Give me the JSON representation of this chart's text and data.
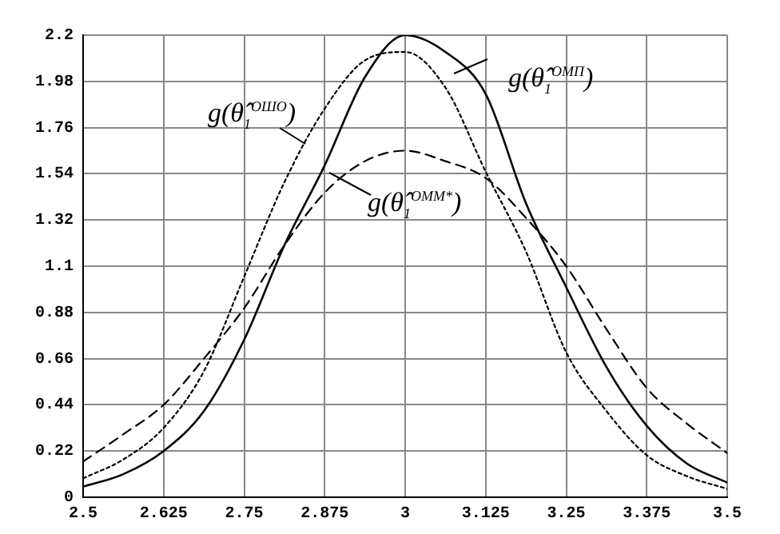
{
  "chart_data": {
    "type": "line",
    "x": [
      2.5,
      2.5625,
      2.625,
      2.6875,
      2.75,
      2.8125,
      2.875,
      2.9375,
      3.0,
      3.0625,
      3.125,
      3.1875,
      3.25,
      3.3125,
      3.375,
      3.4375,
      3.5
    ],
    "series": [
      {
        "name": "g(θ̂$_{1}$$^{ОМП}$)",
        "color": "#000000",
        "line_style": "solid",
        "values": [
          0.05,
          0.11,
          0.22,
          0.41,
          0.75,
          1.2,
          1.58,
          2.0,
          2.2,
          2.12,
          1.92,
          1.4,
          1.0,
          0.62,
          0.34,
          0.16,
          0.07
        ]
      },
      {
        "name": "g(θ̂$_{1}$$^{ОШО}$)",
        "color": "#000000",
        "line_style": "dotted",
        "values": [
          0.09,
          0.18,
          0.33,
          0.6,
          1.05,
          1.5,
          1.85,
          2.08,
          2.12,
          1.95,
          1.55,
          1.17,
          0.69,
          0.41,
          0.2,
          0.1,
          0.04
        ]
      },
      {
        "name": "g(θ̂$_{1}$$^{ОММ*}$)",
        "color": "#000000",
        "line_style": "dashed",
        "values": [
          0.17,
          0.3,
          0.44,
          0.66,
          0.9,
          1.2,
          1.45,
          1.6,
          1.65,
          1.6,
          1.52,
          1.33,
          1.1,
          0.8,
          0.52,
          0.35,
          0.21
        ]
      }
    ],
    "xlim": [
      2.5,
      3.5
    ],
    "xticks": [
      2.5,
      2.625,
      2.75,
      2.875,
      3,
      3.125,
      3.25,
      3.375,
      3.5
    ],
    "ylim": [
      0,
      2.2
    ],
    "yticks": [
      0,
      0.22,
      0.44,
      0.66,
      0.88,
      1.1,
      1.32,
      1.54,
      1.76,
      1.98,
      2.2
    ],
    "grid": true,
    "marker": "none"
  }
}
